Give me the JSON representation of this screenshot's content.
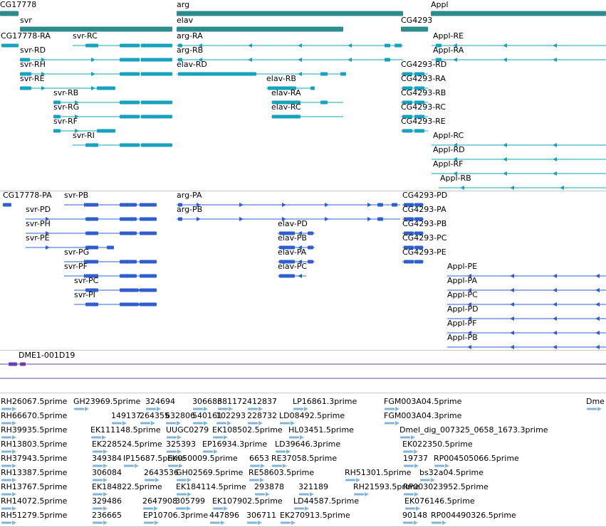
{
  "colors": {
    "gene": "#2e8b8b",
    "transcript": "#17a2bd",
    "protein": "#2f5fcf",
    "clone": "#6a3fb0",
    "est": "#7fb5dc",
    "separator": "#c8c8c8"
  },
  "tracks": [
    {
      "id": "genes",
      "kind": "gene",
      "features": [
        {
          "label": "CG17778",
          "row": 0
        },
        {
          "label": "svr",
          "row": 1
        },
        {
          "label": "arg",
          "row": 0
        },
        {
          "label": "elav",
          "row": 1
        },
        {
          "label": "CG4293",
          "row": 1
        },
        {
          "label": "Appl",
          "row": 0
        }
      ]
    },
    {
      "id": "transcripts",
      "kind": "transcript",
      "features": [
        {
          "label": "CG17778-RA"
        },
        {
          "label": "svr-RC"
        },
        {
          "label": "arg-RA"
        },
        {
          "label": "Appl-RE"
        },
        {
          "label": "svr-RD"
        },
        {
          "label": "arg-RB"
        },
        {
          "label": "Appl-RA"
        },
        {
          "label": "svr-RH"
        },
        {
          "label": "elav-RD"
        },
        {
          "label": "CG4293-RD"
        },
        {
          "label": "svr-RE"
        },
        {
          "label": "elav-RB"
        },
        {
          "label": "CG4293-RA"
        },
        {
          "label": "svr-RB"
        },
        {
          "label": "elav-RA"
        },
        {
          "label": "CG4293-RB"
        },
        {
          "label": "svr-RG"
        },
        {
          "label": "elav-RC"
        },
        {
          "label": "CG4293-RC"
        },
        {
          "label": "svr-RF"
        },
        {
          "label": "CG4293-RE"
        },
        {
          "label": "svr-RI"
        },
        {
          "label": "Appl-RC"
        },
        {
          "label": "Appl-RD"
        },
        {
          "label": "Appl-RF"
        },
        {
          "label": "Appl-RB"
        }
      ]
    },
    {
      "id": "proteins",
      "kind": "protein",
      "features": [
        {
          "label": "CG17778-PA"
        },
        {
          "label": "svr-PB"
        },
        {
          "label": "arg-PA"
        },
        {
          "label": "CG4293-PD"
        },
        {
          "label": "svr-PD"
        },
        {
          "label": "arg-PB"
        },
        {
          "label": "CG4293-PA"
        },
        {
          "label": "svr-PH"
        },
        {
          "label": "elav-PD"
        },
        {
          "label": "CG4293-PB"
        },
        {
          "label": "svr-PE"
        },
        {
          "label": "elav-PB"
        },
        {
          "label": "CG4293-PC"
        },
        {
          "label": "svr-PG"
        },
        {
          "label": "elav-PA"
        },
        {
          "label": "CG4293-PE"
        },
        {
          "label": "svr-PF"
        },
        {
          "label": "elav-PC"
        },
        {
          "label": "Appl-PE"
        },
        {
          "label": "svr-PC"
        },
        {
          "label": "Appl-PA"
        },
        {
          "label": "svr-PI"
        },
        {
          "label": "Appl-PC"
        },
        {
          "label": "Appl-PD"
        },
        {
          "label": "Appl-PF"
        },
        {
          "label": "Appl-PB"
        }
      ]
    },
    {
      "id": "clones",
      "kind": "clone",
      "features": [
        {
          "label": "DME1-001D19"
        }
      ]
    },
    {
      "id": "ests",
      "kind": "est",
      "features": [
        {
          "label": "RH26067.5prime"
        },
        {
          "label": "GH23969.5prime"
        },
        {
          "label": "324694"
        },
        {
          "label": "306686"
        },
        {
          "label": "381172"
        },
        {
          "label": "412837"
        },
        {
          "label": "LP16861.3prime"
        },
        {
          "label": "FGM003A04.5prime"
        },
        {
          "label": "Dme"
        },
        {
          "label": "RH66670.5prime"
        },
        {
          "label": "149137"
        },
        {
          "label": "264355"
        },
        {
          "label": "632806"
        },
        {
          "label": "540161"
        },
        {
          "label": "102293"
        },
        {
          "label": "228732"
        },
        {
          "label": "LD08492.5prime"
        },
        {
          "label": "FGM003A04.3prime"
        },
        {
          "label": "RH39935.5prime"
        },
        {
          "label": "EK111148.5prime"
        },
        {
          "label": "UUGC0279"
        },
        {
          "label": "EK108502.5prime"
        },
        {
          "label": "HL03451.5prime"
        },
        {
          "label": "Dmel_dig_007325_0658_1673.3prime"
        },
        {
          "label": "RH13803.5prime"
        },
        {
          "label": "EK228524.5prime"
        },
        {
          "label": "325393"
        },
        {
          "label": "EP16934.3prime"
        },
        {
          "label": "LD39646.3prime"
        },
        {
          "label": "EK022350.5prime"
        },
        {
          "label": "RH37943.5prime"
        },
        {
          "label": "349384"
        },
        {
          "label": "IP15687.5prime"
        },
        {
          "label": "EK050009.5prime"
        },
        {
          "label": "6653"
        },
        {
          "label": "RE37058.5prime"
        },
        {
          "label": "19737"
        },
        {
          "label": "RP004505066.5prime"
        },
        {
          "label": "RH13387.5prime"
        },
        {
          "label": "306084"
        },
        {
          "label": "2643536"
        },
        {
          "label": "GH02569.5prime"
        },
        {
          "label": "RE58603.5prime"
        },
        {
          "label": "RH51301.5prime"
        },
        {
          "label": "bs32a04.5prime"
        },
        {
          "label": "RH13767.5prime"
        },
        {
          "label": "EK184822.5prime"
        },
        {
          "label": "EK184114.5prime"
        },
        {
          "label": "293878"
        },
        {
          "label": "321189"
        },
        {
          "label": "RH21593.5prime"
        },
        {
          "label": "RP003023952.5prime"
        },
        {
          "label": "RH14072.5prime"
        },
        {
          "label": "329486"
        },
        {
          "label": "2647908"
        },
        {
          "label": "305799"
        },
        {
          "label": "EK107902.5prime"
        },
        {
          "label": "LD44587.5prime"
        },
        {
          "label": "EK076146.5prime"
        },
        {
          "label": "RH51279.5prime"
        },
        {
          "label": "236665"
        },
        {
          "label": "EP10706.3prime"
        },
        {
          "label": "447896"
        },
        {
          "label": "306711"
        },
        {
          "label": "EK270913.5prime"
        },
        {
          "label": "90148"
        },
        {
          "label": "RP004490326.5prime"
        }
      ]
    }
  ]
}
